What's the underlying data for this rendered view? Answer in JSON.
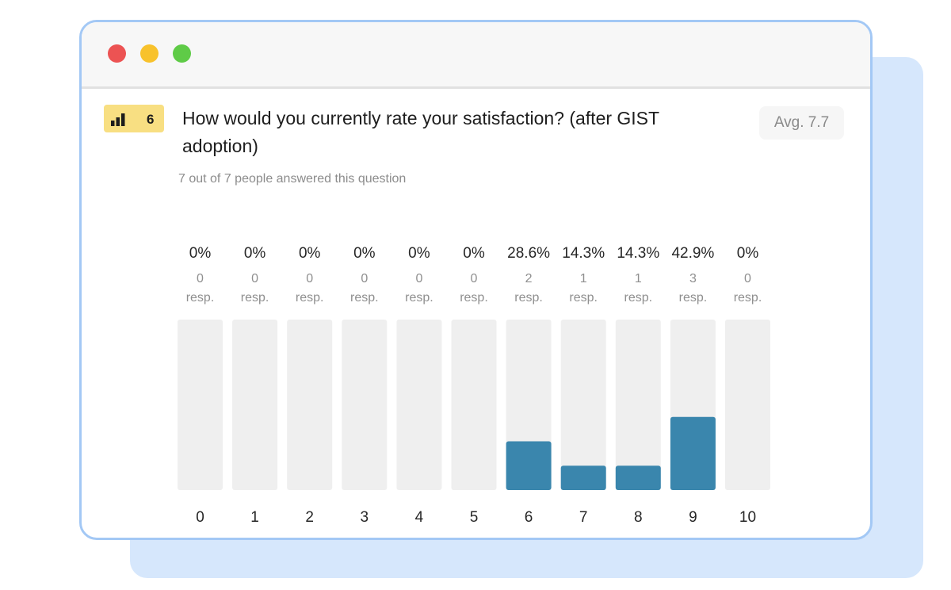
{
  "window": {
    "buttons": [
      "close",
      "minimize",
      "maximize"
    ]
  },
  "question": {
    "number": "6",
    "icon": "bar-chart-icon",
    "text": "How would you currently rate your satisfaction? (after GIST adoption)",
    "answered": "7 out of 7 people answered this question",
    "average": "Avg. 7.7"
  },
  "colors": {
    "bar_fill": "#3a86ad",
    "bar_track": "#efefef",
    "badge": "#f8df82",
    "window_border": "#a3c8f5",
    "backdrop": "#d6e7fc",
    "close": "#ec5353",
    "minimize": "#f8c22c",
    "maximize": "#5fcb47"
  },
  "chart_data": {
    "type": "bar",
    "categories": [
      "0",
      "1",
      "2",
      "3",
      "4",
      "5",
      "6",
      "7",
      "8",
      "9",
      "10"
    ],
    "values": [
      0,
      0,
      0,
      0,
      0,
      0,
      28.6,
      14.3,
      14.3,
      42.9,
      0
    ],
    "percent_labels": [
      "0%",
      "0%",
      "0%",
      "0%",
      "0%",
      "0%",
      "28.6%",
      "14.3%",
      "14.3%",
      "42.9%",
      "0%"
    ],
    "counts": [
      "0",
      "0",
      "0",
      "0",
      "0",
      "0",
      "2",
      "1",
      "1",
      "3",
      "0"
    ],
    "count_unit": "resp.",
    "ylim": [
      0,
      100
    ],
    "grid": false
  }
}
